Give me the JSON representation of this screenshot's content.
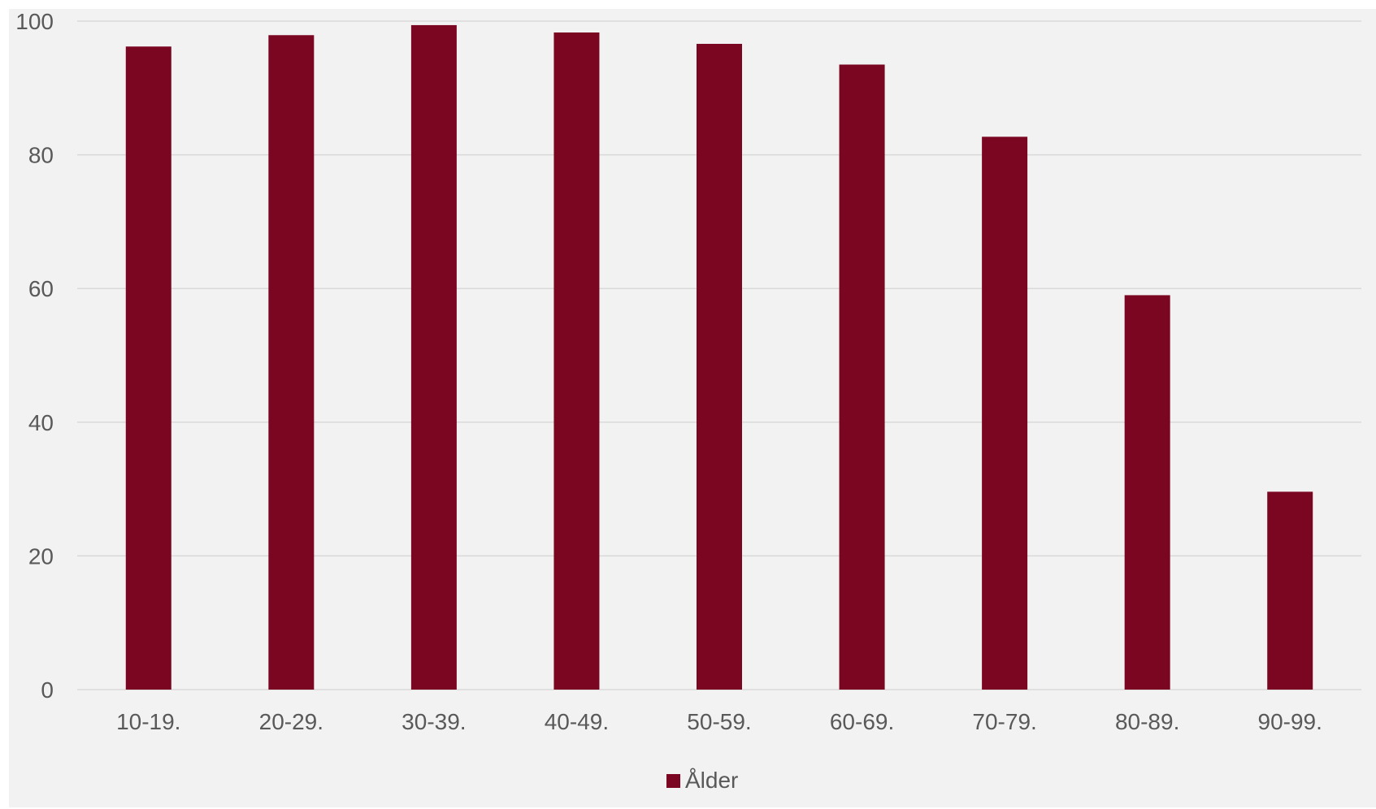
{
  "chart_data": {
    "type": "bar",
    "title": "",
    "xlabel": "",
    "ylabel": "",
    "categories": [
      "10-19.",
      "20-29.",
      "30-39.",
      "40-49.",
      "50-59.",
      "60-69.",
      "70-79.",
      "80-89.",
      "90-99."
    ],
    "series": [
      {
        "name": "Ålder",
        "color": "#7a0621",
        "values": [
          96.2,
          97.9,
          99.4,
          98.3,
          96.6,
          93.5,
          82.7,
          59.0,
          29.6
        ]
      }
    ],
    "ylim": [
      0,
      100
    ],
    "yticks": [
      "0",
      "20",
      "40",
      "60",
      "80",
      "100"
    ],
    "grid": true,
    "legend_position": "bottom",
    "colors": {
      "background": "#f2f2f2",
      "gridline": "#d9d9d9",
      "text": "#595959"
    }
  }
}
